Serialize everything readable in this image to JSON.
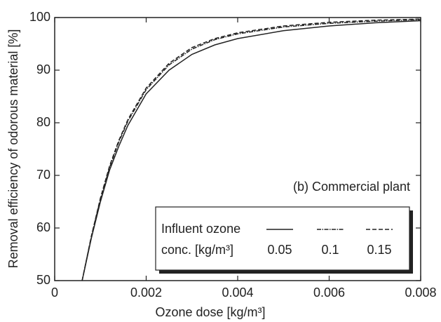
{
  "chart_data": {
    "type": "line",
    "x_label": "Ozone dose [kg/m³]",
    "y_label": "Removal efficiency of odorous material [%]",
    "annotation": "(b) Commercial plant",
    "legend_title": [
      "Influent ozone",
      "conc. [kg/m³]"
    ],
    "xlim": [
      0,
      0.008
    ],
    "xticks": [
      0,
      0.002,
      0.004,
      0.006,
      0.008
    ],
    "ylim": [
      50,
      100
    ],
    "yticks": [
      50,
      60,
      70,
      80,
      90,
      100
    ],
    "grid": false,
    "legend": "lower right",
    "x": [
      0.0006,
      0.0008,
      0.001,
      0.0012,
      0.0014,
      0.0016,
      0.002,
      0.0025,
      0.003,
      0.0035,
      0.004,
      0.005,
      0.006,
      0.007,
      0.008
    ],
    "series": [
      {
        "name": "0.05",
        "color": "#222222",
        "line_style": "solid",
        "values": [
          50,
          58,
          65,
          71,
          75.5,
          79.5,
          85.5,
          90,
          93,
          94.8,
          96,
          97.5,
          98.4,
          99,
          99.4
        ]
      },
      {
        "name": "0.1",
        "color": "#222222",
        "line_style": "dashdot",
        "values": [
          50,
          58.3,
          65.5,
          71.5,
          76.3,
          80.3,
          86.3,
          91,
          94,
          95.8,
          96.9,
          98.2,
          98.9,
          99.3,
          99.6
        ]
      },
      {
        "name": "0.15",
        "color": "#222222",
        "line_style": "dashed",
        "values": [
          50,
          58.4,
          65.7,
          71.8,
          76.6,
          80.6,
          86.6,
          91.3,
          94.3,
          96,
          97.1,
          98.4,
          99.1,
          99.5,
          99.7
        ]
      }
    ]
  }
}
